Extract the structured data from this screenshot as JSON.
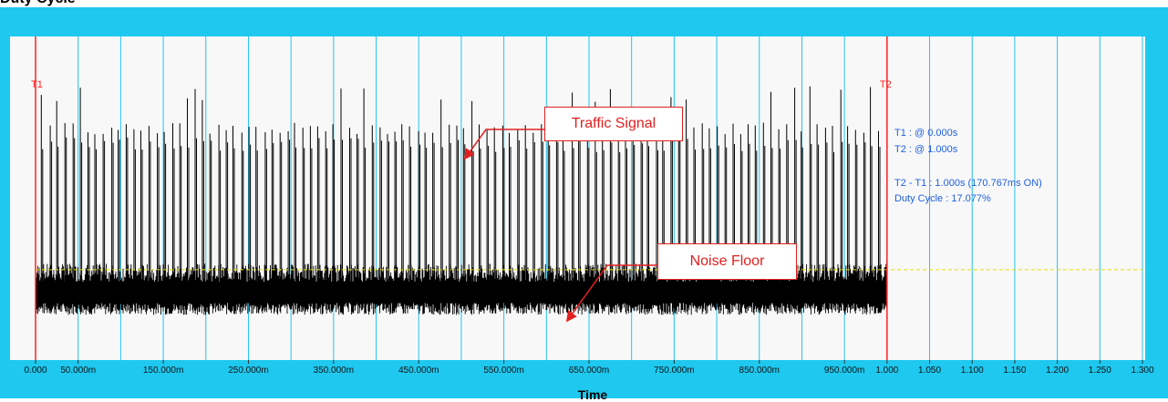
{
  "window": {
    "title_fragment": "Duty Cycle"
  },
  "chart_data": {
    "type": "line",
    "xlabel": "Time",
    "x_unit": "s",
    "xlim": [
      0,
      1.3
    ],
    "x_ticks": [
      {
        "value": 0.0,
        "label": "0.000"
      },
      {
        "value": 0.05,
        "label": "50.000m"
      },
      {
        "value": 0.15,
        "label": "150.000m"
      },
      {
        "value": 0.25,
        "label": "250.000m"
      },
      {
        "value": 0.35,
        "label": "350.000m"
      },
      {
        "value": 0.45,
        "label": "450.000m"
      },
      {
        "value": 0.55,
        "label": "550.000m"
      },
      {
        "value": 0.65,
        "label": "650.000m"
      },
      {
        "value": 0.75,
        "label": "750.000m"
      },
      {
        "value": 0.85,
        "label": "850.000m"
      },
      {
        "value": 0.95,
        "label": "950.000m"
      },
      {
        "value": 1.0,
        "label": "1.000"
      },
      {
        "value": 1.05,
        "label": "1.050"
      },
      {
        "value": 1.1,
        "label": "1.100"
      },
      {
        "value": 1.15,
        "label": "1.150"
      },
      {
        "value": 1.2,
        "label": "1.200"
      },
      {
        "value": 1.25,
        "label": "1.250"
      },
      {
        "value": 1.3,
        "label": "1.300"
      }
    ],
    "grid": true,
    "grid_interval_s": 0.05,
    "colors": {
      "frame": "#1ec8ef",
      "plot_background": "#f8f8f8",
      "grid": "#22c4ee",
      "signal": "#000000",
      "markers": "#ff2020",
      "noise_floor_line": "#e8e000",
      "readout": "#2060e0",
      "callout": "#e02020"
    },
    "signal": {
      "name": "Traffic Signal",
      "time_range_s": [
        0,
        1.0
      ],
      "burst_level": 0.76,
      "peak_level": 0.88,
      "noise_band": [
        0.12,
        0.28
      ],
      "burst_count": 110
    },
    "noise_floor": {
      "level": 0.27
    },
    "markers": [
      {
        "id": "T1",
        "label": "T1",
        "x": 0.0
      },
      {
        "id": "T2",
        "label": "T2",
        "x": 1.0
      }
    ],
    "readout": {
      "t1": "T1 : @ 0.000s",
      "t2": "T2 : @ 1.000s",
      "delta": "T2 - T1 : 1.000s (170.767ms ON)",
      "duty_cycle": "Duty Cycle : 17.077%"
    },
    "annotations": [
      {
        "id": "traffic",
        "text": "Traffic Signal",
        "points_to_x": 0.505
      },
      {
        "id": "noise",
        "text": "Noise Floor",
        "points_to_x": 0.625
      }
    ]
  }
}
